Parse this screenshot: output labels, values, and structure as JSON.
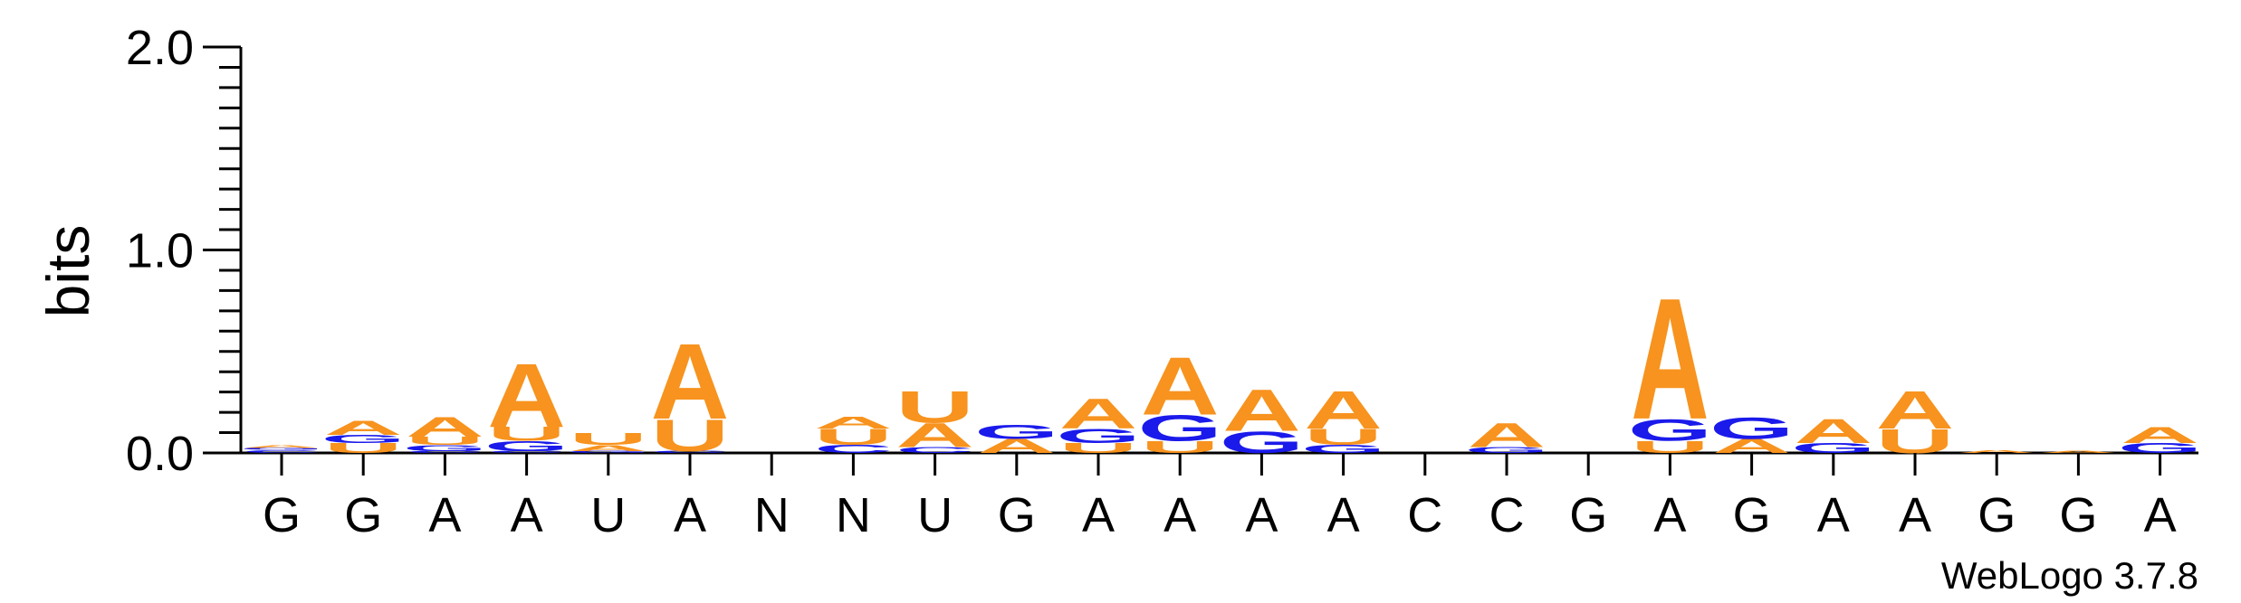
{
  "chart_data": {
    "type": "sequence-logo",
    "ylabel": "bits",
    "ylim": [
      0,
      2.0
    ],
    "yticks": [
      "0.0",
      "1.0",
      "2.0"
    ],
    "consensus": [
      "G",
      "G",
      "A",
      "A",
      "U",
      "A",
      "N",
      "N",
      "U",
      "G",
      "A",
      "A",
      "A",
      "A",
      "C",
      "C",
      "G",
      "A",
      "G",
      "A",
      "A",
      "G",
      "G",
      "A"
    ],
    "colors": {
      "A": "#f7931e",
      "U": "#f7931e",
      "G": "#1a1aeb",
      "C": "#1a1aeb"
    },
    "positions": [
      [
        {
          "l": "C",
          "h": 0.015
        },
        {
          "l": "G",
          "h": 0.01
        },
        {
          "l": "A",
          "h": 0.015
        }
      ],
      [
        {
          "l": "U",
          "h": 0.05
        },
        {
          "l": "G",
          "h": 0.04
        },
        {
          "l": "A",
          "h": 0.07
        }
      ],
      [
        {
          "l": "C",
          "h": 0.01
        },
        {
          "l": "G",
          "h": 0.03
        },
        {
          "l": "U",
          "h": 0.04
        },
        {
          "l": "A",
          "h": 0.1
        }
      ],
      [
        {
          "l": "C",
          "h": 0.01
        },
        {
          "l": "G",
          "h": 0.05
        },
        {
          "l": "U",
          "h": 0.07
        },
        {
          "l": "A",
          "h": 0.32
        }
      ],
      [
        {
          "l": "G",
          "h": 0.01
        },
        {
          "l": "A",
          "h": 0.03
        },
        {
          "l": "U",
          "h": 0.06
        }
      ],
      [
        {
          "l": "C",
          "h": 0.01
        },
        {
          "l": "U",
          "h": 0.16
        },
        {
          "l": "A",
          "h": 0.38
        }
      ],
      [],
      [
        {
          "l": "C",
          "h": 0.04
        },
        {
          "l": "U",
          "h": 0.08
        },
        {
          "l": "A",
          "h": 0.06
        }
      ],
      [
        {
          "l": "C",
          "h": 0.03
        },
        {
          "l": "A",
          "h": 0.12
        },
        {
          "l": "U",
          "h": 0.16
        }
      ],
      [
        {
          "l": "A",
          "h": 0.07
        },
        {
          "l": "G",
          "h": 0.07
        }
      ],
      [
        {
          "l": "U",
          "h": 0.05
        },
        {
          "l": "G",
          "h": 0.07
        },
        {
          "l": "A",
          "h": 0.15
        }
      ],
      [
        {
          "l": "U",
          "h": 0.06
        },
        {
          "l": "G",
          "h": 0.13
        },
        {
          "l": "A",
          "h": 0.29
        }
      ],
      [
        {
          "l": "G",
          "h": 0.11
        },
        {
          "l": "A",
          "h": 0.21
        }
      ],
      [
        {
          "l": "G",
          "h": 0.04
        },
        {
          "l": "U",
          "h": 0.08
        },
        {
          "l": "A",
          "h": 0.19
        }
      ],
      [],
      [
        {
          "l": "G",
          "h": 0.03
        },
        {
          "l": "A",
          "h": 0.12
        }
      ],
      [],
      [
        {
          "l": "U",
          "h": 0.06
        },
        {
          "l": "G",
          "h": 0.11
        },
        {
          "l": "A",
          "h": 0.61
        }
      ],
      [
        {
          "l": "A",
          "h": 0.07
        },
        {
          "l": "G",
          "h": 0.11
        }
      ],
      [
        {
          "l": "G",
          "h": 0.05
        },
        {
          "l": "A",
          "h": 0.12
        }
      ],
      [
        {
          "l": "U",
          "h": 0.12
        },
        {
          "l": "A",
          "h": 0.19
        }
      ],
      [
        {
          "l": "A",
          "h": 0.015
        }
      ],
      [
        {
          "l": "A",
          "h": 0.01
        }
      ],
      [
        {
          "l": "G",
          "h": 0.05
        },
        {
          "l": "A",
          "h": 0.08
        }
      ]
    ]
  },
  "credit": "WebLogo 3.7.8"
}
